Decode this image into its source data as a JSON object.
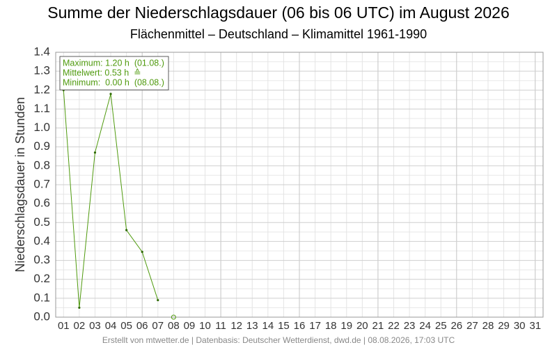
{
  "chart_data": {
    "type": "line",
    "title": "Summe der Niederschlagsdauer (06 bis 06 UTC) im August 2026",
    "subtitle": "Flächenmittel – Deutschland – Klimamittel 1961-1990",
    "y_label": "Niederschlagsdauer in Stunden",
    "footer": "Erstellt von mtwetter.de | Datenbasis: Deutscher Wetterdienst, dwd.de | 08.08.2026, 17:03 UTC",
    "annotations": [
      "Maximum: 1.20 h  (01.08.)",
      "Mittelwert: 0.53 h  ≙",
      "Minimum:  0.00 h  (08.08.)"
    ],
    "categories": [
      "01",
      "02",
      "03",
      "04",
      "05",
      "06",
      "07",
      "08",
      "09",
      "10",
      "11",
      "12",
      "13",
      "14",
      "15",
      "16",
      "17",
      "18",
      "19",
      "20",
      "21",
      "22",
      "23",
      "24",
      "25",
      "26",
      "27",
      "28",
      "29",
      "30",
      "31"
    ],
    "series": [
      {
        "color": "#4f9a0e",
        "values": [
          1.2,
          0.05,
          0.87,
          1.18,
          0.46,
          0.345,
          0.09,
          null,
          null,
          null,
          null,
          null,
          null,
          null,
          null,
          null,
          null,
          null,
          null,
          null,
          null,
          null,
          null,
          null,
          null,
          null,
          null,
          null,
          null,
          null,
          null
        ]
      },
      {
        "color": "#4f9a0e",
        "marker": "hollow",
        "values": [
          null,
          null,
          null,
          null,
          null,
          null,
          null,
          0.0,
          null,
          null,
          null,
          null,
          null,
          null,
          null,
          null,
          null,
          null,
          null,
          null,
          null,
          null,
          null,
          null,
          null,
          null,
          null,
          null,
          null,
          null,
          null
        ]
      }
    ],
    "ylim": [
      0,
      1.4
    ],
    "yticks": [
      {
        "value": 0,
        "label": "0.0"
      },
      0.1,
      0.2,
      0.3,
      0.4,
      0.5,
      0.6,
      0.7,
      0.8,
      0.9,
      {
        "value": 1,
        "label": "1.0"
      },
      1.1,
      1.2,
      1.3,
      1.4
    ],
    "grid": true
  }
}
